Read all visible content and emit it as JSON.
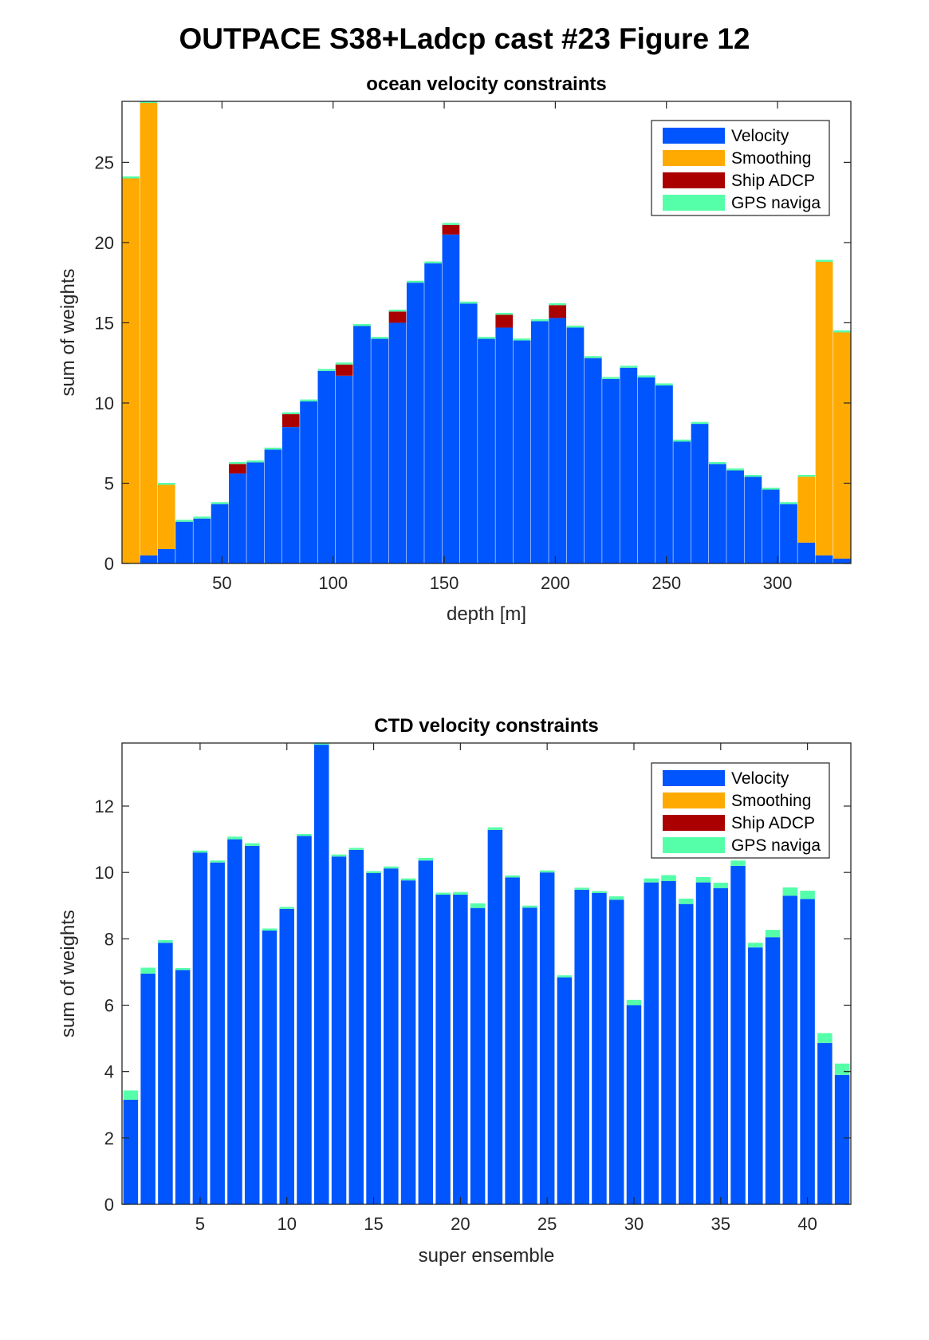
{
  "figure_title": "OUTPACE S38+Ladcp cast #23  Figure 12",
  "colors": {
    "Velocity": "#0055ff",
    "Smoothing": "#ffaa00",
    "Ship ADCP": "#aa0000",
    "GPS naviga": "#55ffaa"
  },
  "chart_data": [
    {
      "type": "bar",
      "stacked": true,
      "title": "ocean velocity constraints",
      "xlabel": "depth [m]",
      "ylabel": "sum of weights",
      "xlim": [
        5,
        333
      ],
      "ylim": [
        0,
        28.8
      ],
      "xticks": [
        50,
        100,
        150,
        200,
        250,
        300
      ],
      "yticks": [
        0,
        5,
        10,
        15,
        20,
        25
      ],
      "bar_width": 7.8,
      "legend_position": "top-right",
      "grid": false,
      "x": [
        9,
        17,
        25,
        33,
        41,
        49,
        57,
        65,
        73,
        81,
        89,
        97,
        105,
        113,
        121,
        129,
        137,
        145,
        153,
        161,
        169,
        177,
        185,
        193,
        201,
        209,
        217,
        225,
        233,
        241,
        249,
        257,
        265,
        273,
        281,
        289,
        297,
        305,
        313,
        321,
        329
      ],
      "series": [
        {
          "name": "Velocity",
          "values": [
            0,
            0.5,
            0.9,
            2.6,
            2.8,
            3.7,
            5.6,
            6.3,
            7.1,
            8.5,
            10.1,
            12.0,
            11.7,
            14.8,
            14.0,
            15.0,
            17.5,
            18.7,
            20.5,
            16.2,
            14.0,
            14.7,
            13.9,
            15.1,
            15.3,
            14.7,
            12.8,
            11.5,
            12.2,
            11.6,
            11.1,
            7.6,
            8.7,
            6.2,
            5.8,
            5.4,
            4.6,
            3.7,
            1.3,
            0.5,
            0.3
          ]
        },
        {
          "name": "Smoothing",
          "values": [
            24.0,
            28.2,
            4.0,
            0,
            0,
            0,
            0,
            0,
            0,
            0,
            0,
            0,
            0,
            0,
            0,
            0,
            0,
            0,
            0,
            0,
            0,
            0,
            0,
            0,
            0,
            0,
            0,
            0,
            0,
            0,
            0,
            0,
            0,
            0,
            0,
            0,
            0,
            0,
            4.1,
            18.3,
            14.1
          ]
        },
        {
          "name": "Ship ADCP",
          "values": [
            0,
            0,
            0,
            0,
            0,
            0,
            0.6,
            0,
            0,
            0.8,
            0,
            0,
            0.7,
            0,
            0,
            0.7,
            0,
            0,
            0.6,
            0,
            0,
            0.8,
            0,
            0,
            0.8,
            0,
            0,
            0,
            0,
            0,
            0,
            0,
            0,
            0,
            0,
            0,
            0,
            0,
            0,
            0,
            0
          ]
        },
        {
          "name": "GPS naviga",
          "values": [
            0.12,
            0.12,
            0.12,
            0.12,
            0.12,
            0.12,
            0.12,
            0.12,
            0.12,
            0.12,
            0.12,
            0.12,
            0.12,
            0.12,
            0.12,
            0.12,
            0.12,
            0.12,
            0.12,
            0.12,
            0.12,
            0.12,
            0.12,
            0.12,
            0.12,
            0.12,
            0.12,
            0.12,
            0.12,
            0.12,
            0.12,
            0.12,
            0.12,
            0.12,
            0.12,
            0.12,
            0.12,
            0.12,
            0.12,
            0.12,
            0.12
          ]
        }
      ]
    },
    {
      "type": "bar",
      "stacked": true,
      "title": "CTD velocity constraints",
      "xlabel": "super ensemble",
      "ylabel": "sum of weights",
      "xlim": [
        0.5,
        42.5
      ],
      "ylim": [
        0,
        13.9
      ],
      "xticks": [
        5,
        10,
        15,
        20,
        25,
        30,
        35,
        40
      ],
      "yticks": [
        0,
        2,
        4,
        6,
        8,
        10,
        12
      ],
      "bar_width": 0.85,
      "legend_position": "top-right",
      "grid": false,
      "x": [
        1,
        2,
        3,
        4,
        5,
        6,
        7,
        8,
        9,
        10,
        11,
        12,
        13,
        14,
        15,
        16,
        17,
        18,
        19,
        20,
        21,
        22,
        23,
        24,
        25,
        26,
        27,
        28,
        29,
        30,
        31,
        32,
        33,
        34,
        35,
        36,
        37,
        38,
        39,
        40,
        41,
        42
      ],
      "series": [
        {
          "name": "Velocity",
          "values": [
            3.15,
            6.95,
            7.88,
            7.06,
            10.6,
            10.3,
            11.0,
            10.8,
            8.25,
            8.9,
            11.1,
            13.85,
            10.48,
            10.68,
            9.98,
            10.12,
            9.76,
            10.36,
            9.33,
            9.33,
            8.93,
            11.28,
            9.85,
            8.94,
            10.0,
            6.84,
            9.48,
            9.38,
            9.18,
            6.0,
            9.7,
            9.74,
            9.05,
            9.7,
            9.53,
            10.2,
            7.74,
            8.05,
            9.3,
            9.2,
            4.86,
            3.9
          ]
        },
        {
          "name": "Smoothing",
          "values": [
            0,
            0,
            0,
            0,
            0,
            0,
            0,
            0,
            0,
            0,
            0,
            0,
            0,
            0,
            0,
            0,
            0,
            0,
            0,
            0,
            0,
            0,
            0,
            0,
            0,
            0,
            0,
            0,
            0,
            0,
            0,
            0,
            0,
            0,
            0,
            0,
            0,
            0,
            0,
            0,
            0,
            0
          ]
        },
        {
          "name": "Ship ADCP",
          "values": [
            0,
            0,
            0,
            0,
            0,
            0,
            0,
            0,
            0,
            0,
            0,
            0,
            0,
            0,
            0,
            0,
            0,
            0,
            0,
            0,
            0,
            0,
            0,
            0,
            0,
            0,
            0,
            0,
            0,
            0,
            0,
            0,
            0,
            0,
            0,
            0,
            0,
            0,
            0,
            0,
            0,
            0
          ]
        },
        {
          "name": "GPS naviga",
          "values": [
            0.28,
            0.18,
            0.08,
            0.06,
            0.06,
            0.06,
            0.08,
            0.08,
            0.06,
            0.06,
            0.06,
            0.05,
            0.06,
            0.06,
            0.06,
            0.06,
            0.06,
            0.08,
            0.06,
            0.08,
            0.14,
            0.08,
            0.06,
            0.06,
            0.06,
            0.06,
            0.06,
            0.06,
            0.1,
            0.16,
            0.12,
            0.18,
            0.16,
            0.16,
            0.16,
            0.16,
            0.14,
            0.22,
            0.25,
            0.25,
            0.3,
            0.34
          ]
        }
      ]
    }
  ]
}
